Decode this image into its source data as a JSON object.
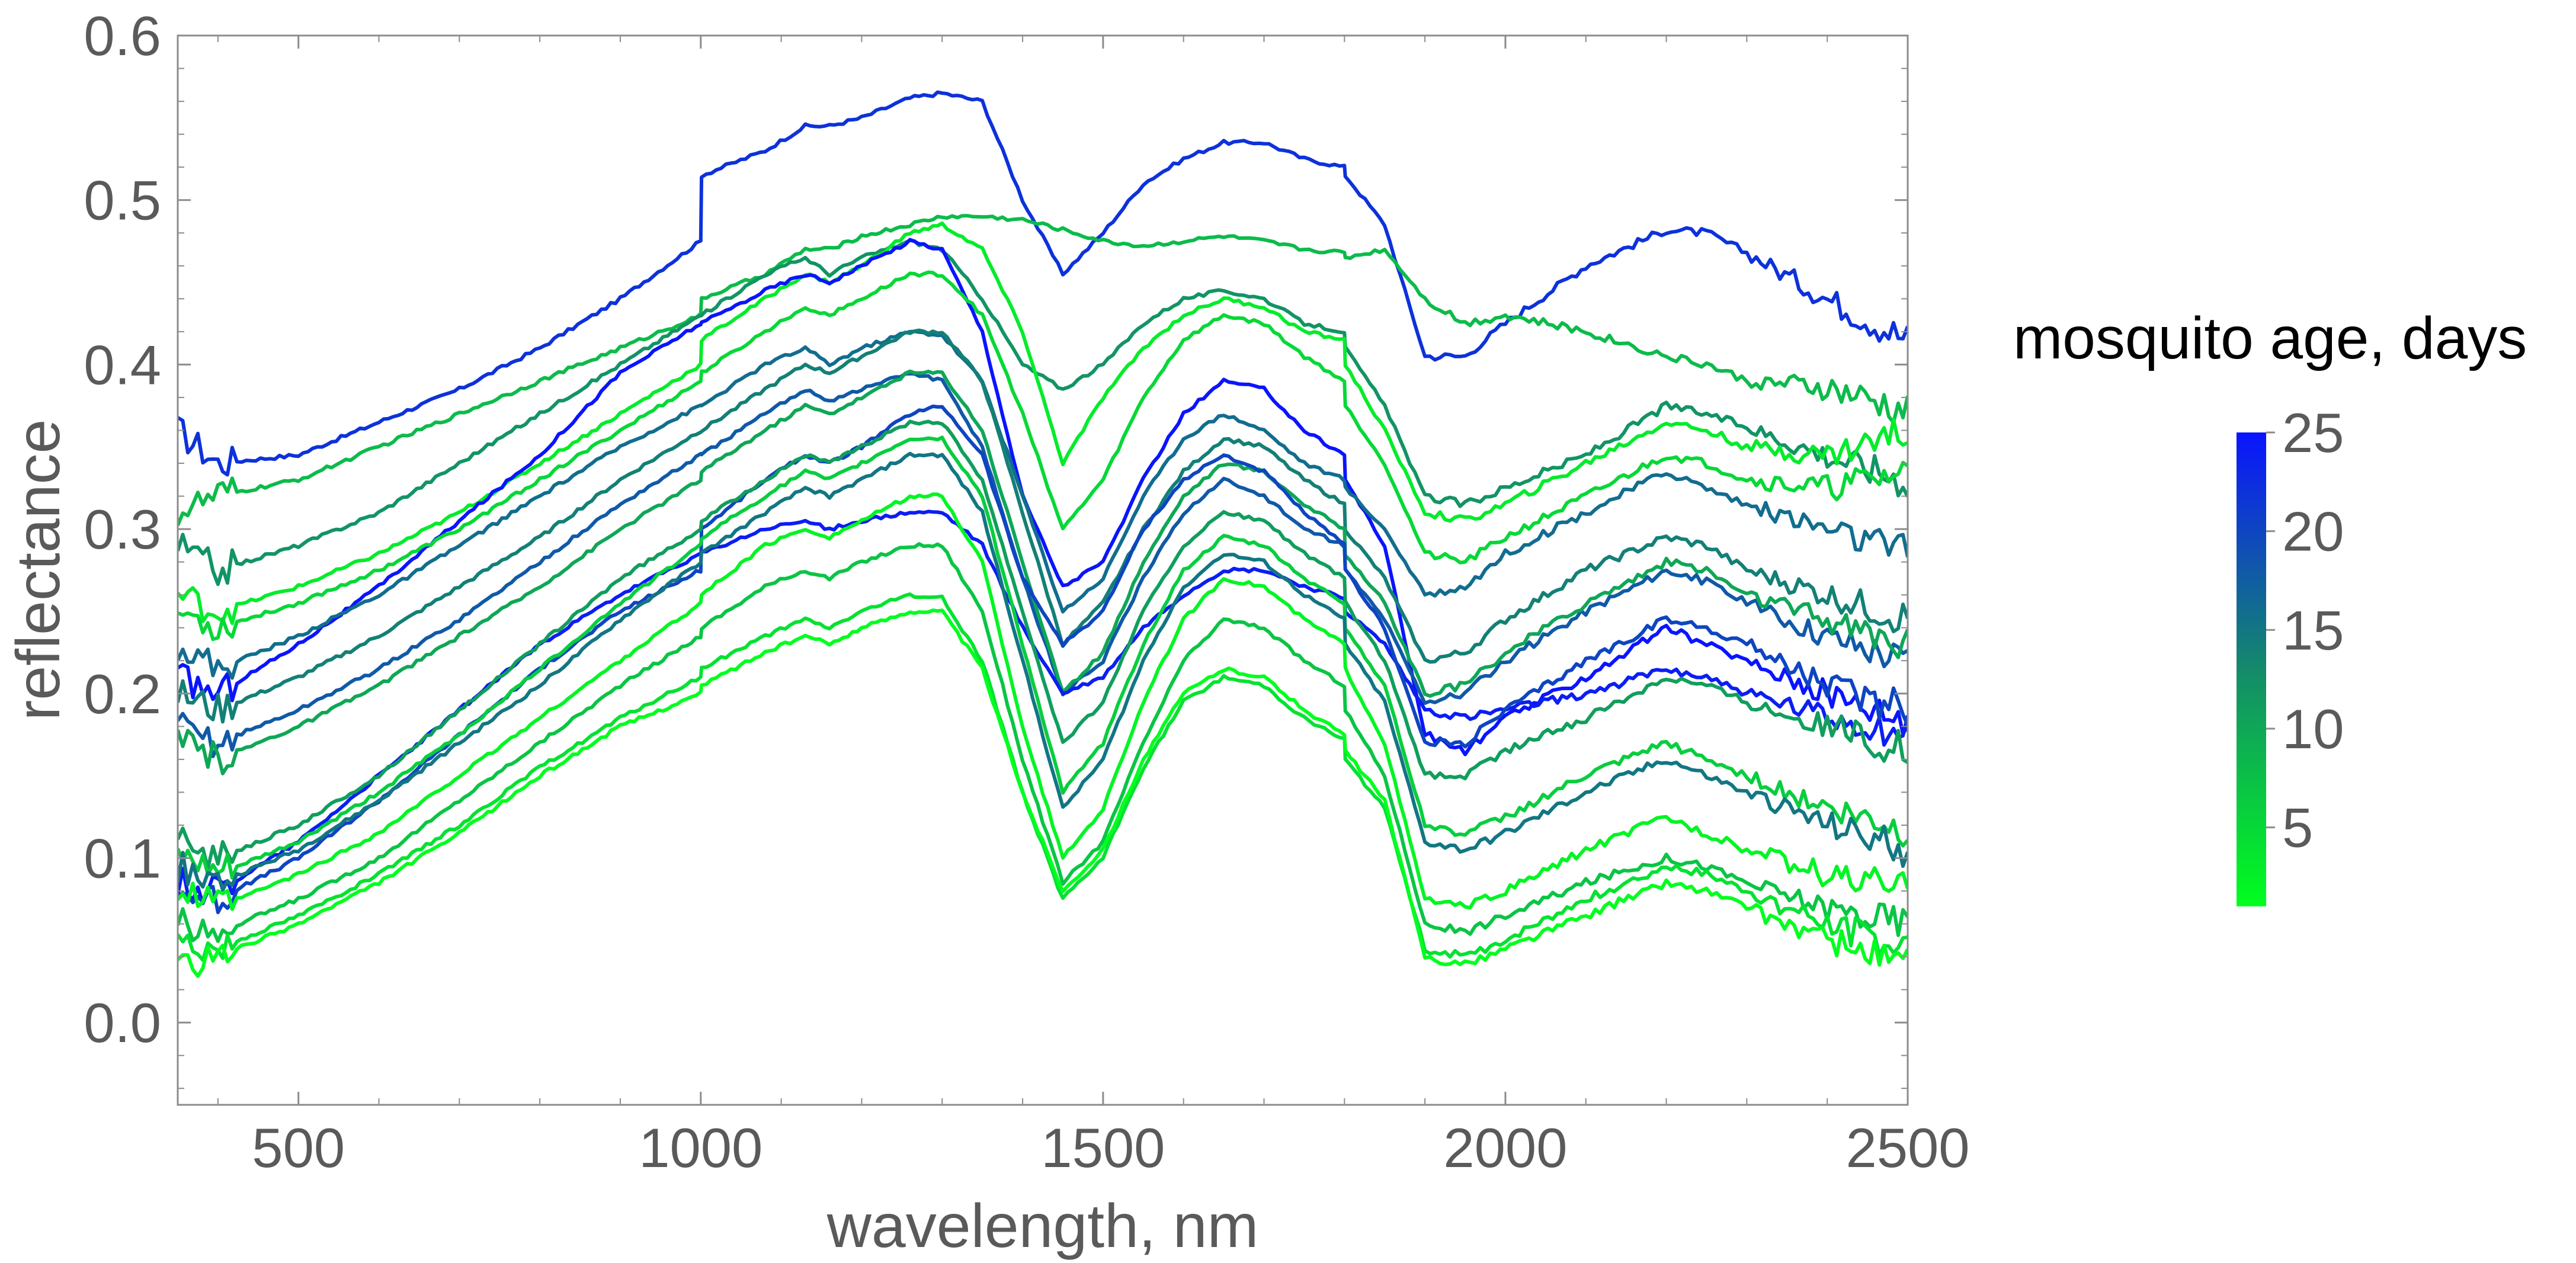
{
  "chart_data": {
    "type": "line",
    "title": "",
    "xlabel": "wavelength, nm",
    "ylabel": "reflectance",
    "xlim": [
      350,
      2500
    ],
    "ylim": [
      -0.05,
      0.6
    ],
    "x_ticks": [
      "500",
      "1000",
      "1500",
      "2000",
      "2500"
    ],
    "x_tick_values": [
      500,
      1000,
      1500,
      2000,
      2500
    ],
    "y_ticks": [
      "0.0",
      "0.1",
      "0.2",
      "0.3",
      "0.4",
      "0.5",
      "0.6"
    ],
    "y_tick_values": [
      0.0,
      0.1,
      0.2,
      0.3,
      0.4,
      0.5,
      0.6
    ],
    "grid": false,
    "colorbar": {
      "title": "mosquito age, days",
      "range": [
        1,
        25
      ],
      "ticks": [
        "5",
        "10",
        "15",
        "20",
        "25"
      ],
      "tick_values": [
        5,
        10,
        15,
        20,
        25
      ],
      "color_low": "#00ff1e",
      "color_mid": "#148a6a",
      "color_high": "#0a14ff",
      "placement": "right"
    },
    "wavelengths": [
      350,
      400,
      500,
      600,
      700,
      800,
      900,
      1000,
      1001,
      1080,
      1130,
      1160,
      1200,
      1260,
      1300,
      1350,
      1400,
      1450,
      1500,
      1550,
      1600,
      1650,
      1700,
      1750,
      1800,
      1801,
      1850,
      1900,
      1950,
      2000,
      2100,
      2200,
      2250,
      2300,
      2400,
      2500
    ],
    "series": [
      {
        "age": 22,
        "values": [
          0.36,
          0.34,
          0.345,
          0.365,
          0.385,
          0.41,
          0.44,
          0.475,
          0.515,
          0.53,
          0.545,
          0.545,
          0.55,
          0.562,
          0.565,
          0.56,
          0.5,
          0.455,
          0.48,
          0.51,
          0.525,
          0.535,
          0.535,
          0.525,
          0.52,
          0.515,
          0.485,
          0.405,
          0.405,
          0.425,
          0.46,
          0.482,
          0.48,
          0.468,
          0.44,
          0.415
        ]
      },
      {
        "age": 8,
        "values": [
          0.31,
          0.32,
          0.33,
          0.35,
          0.37,
          0.39,
          0.41,
          0.43,
          0.44,
          0.455,
          0.47,
          0.47,
          0.478,
          0.485,
          0.49,
          0.49,
          0.488,
          0.482,
          0.475,
          0.472,
          0.475,
          0.478,
          0.475,
          0.47,
          0.468,
          0.465,
          0.47,
          0.44,
          0.425,
          0.43,
          0.42,
          0.405,
          0.4,
          0.39,
          0.385,
          0.37
        ]
      },
      {
        "age": 12,
        "values": [
          0.29,
          0.275,
          0.29,
          0.31,
          0.34,
          0.37,
          0.4,
          0.43,
          0.43,
          0.455,
          0.465,
          0.455,
          0.465,
          0.475,
          0.47,
          0.44,
          0.4,
          0.385,
          0.4,
          0.425,
          0.44,
          0.445,
          0.44,
          0.425,
          0.42,
          0.41,
          0.375,
          0.32,
          0.315,
          0.325,
          0.345,
          0.375,
          0.37,
          0.362,
          0.345,
          0.33
        ]
      },
      {
        "age": 3,
        "values": [
          0.26,
          0.25,
          0.265,
          0.285,
          0.31,
          0.34,
          0.37,
          0.4,
          0.415,
          0.44,
          0.455,
          0.45,
          0.46,
          0.48,
          0.485,
          0.47,
          0.42,
          0.34,
          0.38,
          0.41,
          0.43,
          0.44,
          0.435,
          0.42,
          0.415,
          0.4,
          0.36,
          0.31,
          0.305,
          0.315,
          0.34,
          0.365,
          0.36,
          0.35,
          0.345,
          0.36
        ]
      },
      {
        "age": 25,
        "values": [
          0.21,
          0.2,
          0.23,
          0.265,
          0.305,
          0.345,
          0.395,
          0.425,
          0.425,
          0.445,
          0.455,
          0.45,
          0.46,
          0.475,
          0.47,
          0.42,
          0.32,
          0.265,
          0.28,
          0.33,
          0.37,
          0.39,
          0.385,
          0.36,
          0.345,
          0.33,
          0.29,
          0.175,
          0.165,
          0.185,
          0.21,
          0.24,
          0.23,
          0.22,
          0.2,
          0.185
        ]
      },
      {
        "age": 16,
        "values": [
          0.23,
          0.215,
          0.235,
          0.26,
          0.29,
          0.32,
          0.35,
          0.375,
          0.375,
          0.4,
          0.41,
          0.4,
          0.41,
          0.42,
          0.418,
          0.39,
          0.32,
          0.25,
          0.27,
          0.32,
          0.355,
          0.37,
          0.36,
          0.34,
          0.33,
          0.325,
          0.3,
          0.26,
          0.265,
          0.285,
          0.31,
          0.335,
          0.325,
          0.315,
          0.3,
          0.285
        ]
      },
      {
        "age": 14,
        "values": [
          0.2,
          0.19,
          0.21,
          0.235,
          0.265,
          0.295,
          0.33,
          0.36,
          0.36,
          0.385,
          0.4,
          0.395,
          0.405,
          0.42,
          0.42,
          0.39,
          0.31,
          0.23,
          0.255,
          0.3,
          0.335,
          0.355,
          0.35,
          0.33,
          0.315,
          0.3,
          0.27,
          0.22,
          0.225,
          0.245,
          0.275,
          0.295,
          0.29,
          0.275,
          0.26,
          0.245
        ]
      },
      {
        "age": 5,
        "values": [
          0.25,
          0.24,
          0.255,
          0.275,
          0.3,
          0.33,
          0.36,
          0.39,
          0.395,
          0.42,
          0.435,
          0.43,
          0.44,
          0.455,
          0.455,
          0.43,
          0.37,
          0.3,
          0.33,
          0.38,
          0.415,
          0.43,
          0.425,
          0.405,
          0.39,
          0.375,
          0.34,
          0.285,
          0.28,
          0.295,
          0.32,
          0.345,
          0.34,
          0.33,
          0.325,
          0.335
        ]
      },
      {
        "age": 18,
        "values": [
          0.18,
          0.17,
          0.19,
          0.215,
          0.245,
          0.28,
          0.315,
          0.345,
          0.345,
          0.37,
          0.385,
          0.378,
          0.385,
          0.395,
          0.39,
          0.35,
          0.27,
          0.2,
          0.22,
          0.27,
          0.31,
          0.33,
          0.32,
          0.3,
          0.29,
          0.275,
          0.245,
          0.195,
          0.2,
          0.22,
          0.25,
          0.275,
          0.268,
          0.255,
          0.235,
          0.22
        ]
      },
      {
        "age": 10,
        "values": [
          0.17,
          0.16,
          0.18,
          0.205,
          0.235,
          0.265,
          0.3,
          0.33,
          0.335,
          0.36,
          0.375,
          0.37,
          0.38,
          0.395,
          0.395,
          0.36,
          0.28,
          0.2,
          0.225,
          0.28,
          0.32,
          0.34,
          0.335,
          0.315,
          0.3,
          0.285,
          0.255,
          0.2,
          0.205,
          0.225,
          0.255,
          0.28,
          0.275,
          0.26,
          0.245,
          0.23
        ]
      },
      {
        "age": 24,
        "values": [
          0.085,
          0.08,
          0.11,
          0.15,
          0.19,
          0.23,
          0.26,
          0.285,
          0.285,
          0.3,
          0.305,
          0.3,
          0.305,
          0.31,
          0.31,
          0.29,
          0.24,
          0.2,
          0.21,
          0.24,
          0.26,
          0.275,
          0.275,
          0.265,
          0.258,
          0.25,
          0.23,
          0.19,
          0.185,
          0.19,
          0.2,
          0.215,
          0.21,
          0.2,
          0.185,
          0.175
        ]
      },
      {
        "age": 20,
        "values": [
          0.08,
          0.075,
          0.1,
          0.135,
          0.175,
          0.215,
          0.25,
          0.275,
          0.3,
          0.33,
          0.345,
          0.34,
          0.35,
          0.37,
          0.375,
          0.345,
          0.27,
          0.23,
          0.25,
          0.3,
          0.33,
          0.345,
          0.335,
          0.31,
          0.29,
          0.275,
          0.24,
          0.17,
          0.17,
          0.19,
          0.22,
          0.245,
          0.24,
          0.23,
          0.205,
          0.19
        ]
      },
      {
        "age": 11,
        "values": [
          0.11,
          0.1,
          0.12,
          0.15,
          0.19,
          0.23,
          0.27,
          0.3,
          0.305,
          0.33,
          0.345,
          0.34,
          0.35,
          0.365,
          0.365,
          0.33,
          0.25,
          0.17,
          0.195,
          0.25,
          0.29,
          0.31,
          0.305,
          0.285,
          0.27,
          0.255,
          0.22,
          0.15,
          0.15,
          0.165,
          0.185,
          0.21,
          0.205,
          0.195,
          0.18,
          0.165
        ]
      },
      {
        "age": 6,
        "values": [
          0.1,
          0.09,
          0.11,
          0.14,
          0.175,
          0.215,
          0.255,
          0.29,
          0.295,
          0.32,
          0.335,
          0.33,
          0.34,
          0.355,
          0.355,
          0.32,
          0.23,
          0.14,
          0.17,
          0.23,
          0.275,
          0.295,
          0.29,
          0.27,
          0.255,
          0.24,
          0.205,
          0.12,
          0.115,
          0.125,
          0.15,
          0.17,
          0.16,
          0.15,
          0.13,
          0.115
        ]
      },
      {
        "age": 15,
        "values": [
          0.095,
          0.085,
          0.105,
          0.135,
          0.17,
          0.205,
          0.245,
          0.28,
          0.285,
          0.31,
          0.325,
          0.32,
          0.33,
          0.345,
          0.345,
          0.31,
          0.22,
          0.13,
          0.16,
          0.22,
          0.265,
          0.285,
          0.28,
          0.26,
          0.245,
          0.23,
          0.195,
          0.11,
          0.105,
          0.115,
          0.14,
          0.16,
          0.15,
          0.14,
          0.12,
          0.105
        ]
      },
      {
        "age": 2,
        "values": [
          0.08,
          0.07,
          0.09,
          0.115,
          0.15,
          0.185,
          0.22,
          0.255,
          0.26,
          0.29,
          0.3,
          0.295,
          0.305,
          0.32,
          0.32,
          0.28,
          0.18,
          0.1,
          0.13,
          0.195,
          0.245,
          0.27,
          0.265,
          0.245,
          0.23,
          0.215,
          0.17,
          0.075,
          0.07,
          0.08,
          0.105,
          0.125,
          0.115,
          0.105,
          0.09,
          0.08
        ]
      },
      {
        "age": 7,
        "values": [
          0.06,
          0.055,
          0.075,
          0.1,
          0.135,
          0.17,
          0.205,
          0.235,
          0.24,
          0.265,
          0.275,
          0.27,
          0.28,
          0.29,
          0.29,
          0.25,
          0.16,
          0.085,
          0.11,
          0.17,
          0.22,
          0.245,
          0.24,
          0.22,
          0.205,
          0.19,
          0.15,
          0.06,
          0.055,
          0.065,
          0.085,
          0.1,
          0.095,
          0.085,
          0.07,
          0.06
        ]
      },
      {
        "age": 4,
        "values": [
          0.05,
          0.045,
          0.065,
          0.09,
          0.12,
          0.155,
          0.185,
          0.21,
          0.215,
          0.235,
          0.245,
          0.24,
          0.25,
          0.26,
          0.258,
          0.22,
          0.14,
          0.075,
          0.1,
          0.155,
          0.195,
          0.21,
          0.205,
          0.185,
          0.172,
          0.16,
          0.13,
          0.045,
          0.04,
          0.05,
          0.075,
          0.095,
          0.09,
          0.08,
          0.06,
          0.045
        ]
      },
      {
        "age": 1,
        "values": [
          0.03,
          0.04,
          0.06,
          0.085,
          0.115,
          0.15,
          0.18,
          0.2,
          0.205,
          0.225,
          0.235,
          0.23,
          0.24,
          0.25,
          0.25,
          0.215,
          0.14,
          0.08,
          0.105,
          0.16,
          0.2,
          0.215,
          0.21,
          0.19,
          0.175,
          0.165,
          0.135,
          0.04,
          0.035,
          0.045,
          0.065,
          0.085,
          0.08,
          0.07,
          0.05,
          0.035
        ]
      }
    ]
  }
}
